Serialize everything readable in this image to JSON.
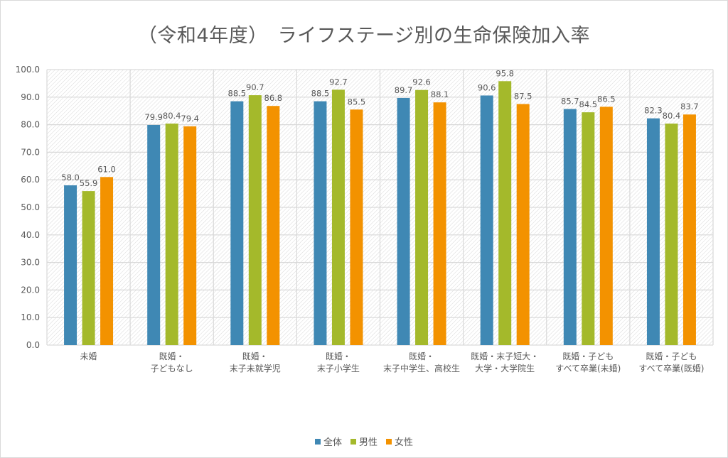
{
  "chart_data": {
    "type": "bar",
    "title": "（令和4年度）　ライフステージ別の生命保険加入率",
    "xlabel": "",
    "ylabel": "",
    "ylim": [
      0,
      100
    ],
    "yticks": [
      "0.0",
      "10.0",
      "20.0",
      "30.0",
      "40.0",
      "50.0",
      "60.0",
      "70.0",
      "80.0",
      "90.0",
      "100.0"
    ],
    "grid": true,
    "legend_position": "bottom",
    "categories": [
      [
        "未婚"
      ],
      [
        "既婚・",
        "子どもなし"
      ],
      [
        "既婚・",
        "末子未就学児"
      ],
      [
        "既婚・",
        "末子小学生"
      ],
      [
        "既婚・",
        "末子中学生、高校生"
      ],
      [
        "既婚・末子短大・",
        "大学・大学院生"
      ],
      [
        "既婚・子ども",
        "すべて卒業(未婚)"
      ],
      [
        "既婚・子ども",
        "すべて卒業(既婚)"
      ]
    ],
    "series": [
      {
        "name": "全体",
        "color": "#3f88b4",
        "values": [
          58.0,
          79.9,
          88.5,
          88.5,
          89.7,
          90.6,
          85.7,
          82.3
        ]
      },
      {
        "name": "男性",
        "color": "#a4b92b",
        "values": [
          55.9,
          80.4,
          90.7,
          92.7,
          92.6,
          95.8,
          84.5,
          80.4
        ]
      },
      {
        "name": "女性",
        "color": "#f39200",
        "values": [
          61.0,
          79.4,
          86.8,
          85.5,
          88.1,
          87.5,
          86.5,
          83.7
        ]
      }
    ]
  }
}
